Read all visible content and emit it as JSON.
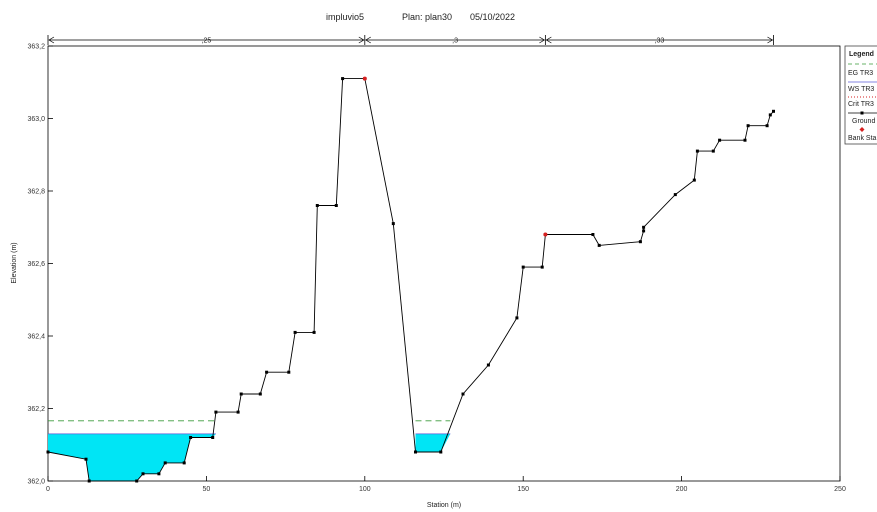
{
  "chart_data": {
    "type": "line",
    "title": {
      "project": "impluvio5",
      "plan": "Plan: plan30",
      "date": "05/10/2022"
    },
    "xlabel": "Station (m)",
    "ylabel": "Elevation (m)",
    "xlim": [
      0,
      250
    ],
    "ylim": [
      362.0,
      363.2
    ],
    "x_ticks": [
      {
        "v": 0,
        "label": "0"
      },
      {
        "v": 50,
        "label": "50"
      },
      {
        "v": 100,
        "label": "100"
      },
      {
        "v": 150,
        "label": "150"
      },
      {
        "v": 200,
        "label": "200"
      },
      {
        "v": 250,
        "label": "250"
      }
    ],
    "y_ticks": [
      {
        "v": 362.0,
        "label": "362,0"
      },
      {
        "v": 362.2,
        "label": "362,2"
      },
      {
        "v": 362.4,
        "label": "362,4"
      },
      {
        "v": 362.6,
        "label": "362,6"
      },
      {
        "v": 362.8,
        "label": "362,8"
      },
      {
        "v": 363.0,
        "label": "363,0"
      },
      {
        "v": 363.2,
        "label": "363,2"
      }
    ],
    "ground": {
      "x": [
        0,
        12,
        13,
        28,
        30,
        35,
        37,
        43,
        45,
        52,
        53,
        60,
        61,
        67,
        69,
        76,
        78,
        84,
        85,
        91,
        93,
        100,
        109,
        116,
        124,
        131,
        139,
        148,
        150,
        156,
        157,
        172,
        174,
        187,
        188,
        188,
        198,
        204,
        205,
        210,
        212,
        220,
        221,
        227,
        228,
        229
      ],
      "y": [
        362.08,
        362.06,
        362.0,
        362.0,
        362.02,
        362.02,
        362.05,
        362.05,
        362.12,
        362.12,
        362.19,
        362.19,
        362.24,
        362.24,
        362.3,
        362.3,
        362.41,
        362.41,
        362.76,
        362.76,
        363.11,
        363.11,
        362.71,
        362.08,
        362.08,
        362.24,
        362.32,
        362.45,
        362.59,
        362.59,
        362.68,
        362.68,
        362.65,
        362.66,
        362.69,
        362.7,
        362.79,
        362.83,
        362.91,
        362.91,
        362.94,
        362.94,
        362.98,
        362.98,
        363.01,
        363.02
      ]
    },
    "bank_stations": [
      {
        "x": 100,
        "y": 363.11
      },
      {
        "x": 157,
        "y": 362.68
      }
    ],
    "ws_elevation": 362.13,
    "eg_elevation": 362.166,
    "ws_extents": [
      [
        0,
        53
      ],
      [
        116,
        127
      ]
    ],
    "eg_extents": [
      [
        0,
        53
      ],
      [
        116,
        127
      ]
    ],
    "mannings": [
      {
        "x0": 0,
        "x1": 100,
        "label": ",25"
      },
      {
        "x0": 100,
        "x1": 157,
        "label": ",3"
      },
      {
        "x0": 157,
        "x1": 229,
        "label": ",33"
      }
    ],
    "legend": {
      "title": "Legend",
      "position": "right",
      "entries": [
        {
          "label": "EG TR3",
          "style": "dashed",
          "color": "#3a9a3a"
        },
        {
          "label": "WS TR3",
          "style": "solid",
          "color": "#5b5bd6"
        },
        {
          "label": "Crit TR3",
          "style": "dotted",
          "color": "#d62020"
        },
        {
          "label": "Ground",
          "style": "solid-marker",
          "color": "#000000"
        },
        {
          "label": "Bank Sta",
          "style": "marker",
          "color": "#d62020"
        }
      ]
    },
    "colors": {
      "water_fill": "#00e5f5",
      "ground": "#000000",
      "bank": "#d62020",
      "eg": "#3a9a3a",
      "ws": "#5b5bd6"
    }
  }
}
